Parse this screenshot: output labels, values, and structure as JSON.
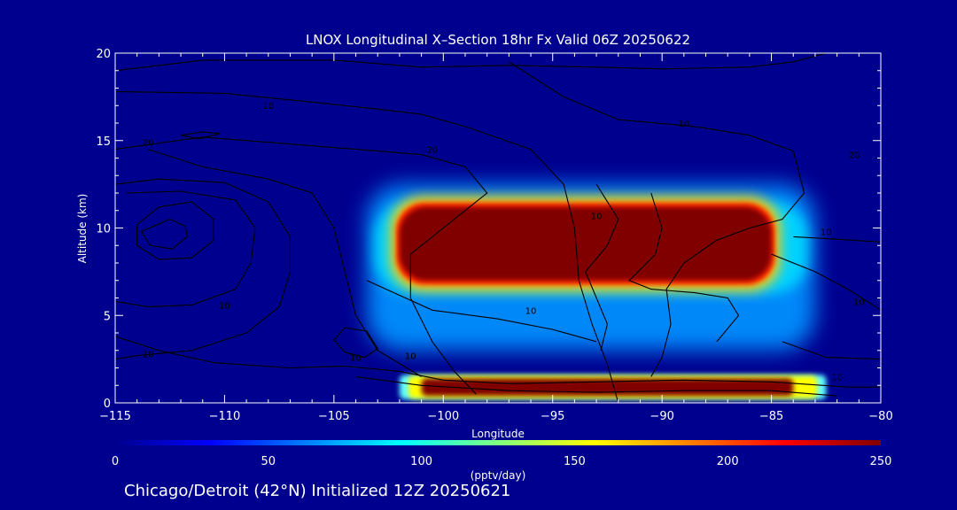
{
  "chart_data": {
    "type": "heatmap",
    "title": "LNOX Longitudinal X–Section 18hr  Fx Valid 06Z 20250622",
    "xlabel": "Longitude",
    "ylabel": "Altitude (km)",
    "xlim": [
      -115,
      -80
    ],
    "ylim": [
      0,
      20
    ],
    "x_ticks": [
      -115,
      -110,
      -105,
      -100,
      -95,
      -90,
      -85,
      -80
    ],
    "x_tick_labels": [
      "−115",
      "−110",
      "−105",
      "−100",
      "−95",
      "−90",
      "−85",
      "−80"
    ],
    "y_ticks": [
      0,
      5,
      10,
      15,
      20
    ],
    "y_tick_labels": [
      "0",
      "5",
      "10",
      "15",
      "20"
    ],
    "colorbar": {
      "label": "(pptv/day)",
      "min": 0,
      "max": 250,
      "ticks": [
        0,
        50,
        100,
        150,
        200,
        250
      ],
      "tick_labels": [
        "0",
        "50",
        "100",
        "150",
        "200",
        "250"
      ],
      "colors": [
        "#00008f",
        "#0000ff",
        "#0080ff",
        "#00ffff",
        "#80ff80",
        "#ffff00",
        "#ff8000",
        "#ff0000",
        "#800000"
      ]
    },
    "regions": [
      {
        "name": "upper-anvil",
        "value": 250,
        "lon": [
          -102,
          -85
        ],
        "alt": [
          7,
          11.2
        ],
        "halo_lon": [
          -103.5,
          -83
        ],
        "halo_alt": [
          3,
          12.5
        ]
      },
      {
        "name": "low-level-band",
        "value": 250,
        "lon": [
          -101,
          -84
        ],
        "alt": [
          0.4,
          1.4
        ],
        "halo_lon": [
          -102,
          -82.5
        ],
        "halo_alt": [
          0.2,
          1.6
        ]
      }
    ],
    "contour_labels": [
      {
        "text": "10",
        "lon": -108,
        "alt": 16.8
      },
      {
        "text": "20",
        "lon": -113.5,
        "alt": 14.7
      },
      {
        "text": "20",
        "lon": -100.5,
        "alt": 14.3
      },
      {
        "text": "10",
        "lon": -89,
        "alt": 15.8
      },
      {
        "text": "10",
        "lon": -101.5,
        "alt": 2.5
      },
      {
        "text": "10",
        "lon": -96,
        "alt": 5.1
      },
      {
        "text": "10",
        "lon": -104,
        "alt": 2.4
      },
      {
        "text": "10",
        "lon": -82.5,
        "alt": 9.6
      },
      {
        "text": "10",
        "lon": -81,
        "alt": 5.6
      },
      {
        "text": "10",
        "lon": -82,
        "alt": 1.3
      },
      {
        "text": "10",
        "lon": -110,
        "alt": 5.4
      },
      {
        "text": "10",
        "lon": -113.5,
        "alt": 2.6
      },
      {
        "text": "20",
        "lon": -81.2,
        "alt": 14.0
      },
      {
        "text": "10",
        "lon": -93,
        "alt": 10.5
      }
    ],
    "contour_lines": [
      [
        [
          -115,
          19
        ],
        [
          -111,
          19.6
        ],
        [
          -105,
          19.6
        ],
        [
          -101,
          19.2
        ],
        [
          -97,
          19.3
        ],
        [
          -93,
          19.2
        ],
        [
          -90,
          19.1
        ],
        [
          -86,
          19.2
        ],
        [
          -84,
          19.5
        ],
        [
          -82.5,
          20
        ]
      ],
      [
        [
          -115,
          17.8
        ],
        [
          -110,
          17.7
        ],
        [
          -106,
          17.2
        ],
        [
          -103,
          16.8
        ],
        [
          -101,
          16.5
        ],
        [
          -99,
          15.8
        ],
        [
          -96,
          14.5
        ],
        [
          -94.5,
          12.5
        ],
        [
          -94,
          10
        ],
        [
          -93.8,
          7
        ],
        [
          -93.2,
          4.5
        ],
        [
          -92.5,
          2.2
        ],
        [
          -92,
          0
        ]
      ],
      [
        [
          -115,
          14.5
        ],
        [
          -111,
          15.2
        ],
        [
          -107,
          14.8
        ],
        [
          -104,
          14.5
        ],
        [
          -101,
          14.2
        ],
        [
          -99,
          13.5
        ],
        [
          -98,
          12
        ],
        [
          -99.5,
          10.5
        ],
        [
          -101.5,
          8.5
        ],
        [
          -101.5,
          6
        ],
        [
          -100.5,
          3.5
        ],
        [
          -99.5,
          1.8
        ],
        [
          -98.5,
          0.5
        ]
      ],
      [
        [
          -113.5,
          14.5
        ],
        [
          -111,
          13.5
        ],
        [
          -108,
          12.8
        ],
        [
          -106,
          12
        ],
        [
          -105,
          10
        ],
        [
          -104.5,
          7.5
        ],
        [
          -104,
          5
        ],
        [
          -103,
          3
        ],
        [
          -101,
          1.5
        ]
      ],
      [
        [
          -115,
          12.5
        ],
        [
          -113,
          12.8
        ],
        [
          -110,
          12.6
        ],
        [
          -108,
          11.5
        ],
        [
          -107,
          9.5
        ],
        [
          -107,
          7.5
        ],
        [
          -107.5,
          5.5
        ],
        [
          -109,
          4
        ],
        [
          -111.5,
          3
        ],
        [
          -114,
          2.7
        ],
        [
          -115,
          2.5
        ]
      ],
      [
        [
          -113,
          11.2
        ],
        [
          -111.5,
          11.5
        ],
        [
          -110.5,
          10.5
        ],
        [
          -110.5,
          9.3
        ],
        [
          -111.5,
          8.3
        ],
        [
          -113,
          8.2
        ],
        [
          -114,
          9
        ],
        [
          -114,
          10.2
        ],
        [
          -113,
          11.2
        ]
      ],
      [
        [
          -112.5,
          10.5
        ],
        [
          -111.8,
          10.1
        ],
        [
          -111.7,
          9.5
        ],
        [
          -112.4,
          8.8
        ],
        [
          -113.4,
          9
        ],
        [
          -113.8,
          9.8
        ],
        [
          -112.5,
          10.5
        ]
      ],
      [
        [
          -114.5,
          12
        ],
        [
          -112,
          12.1
        ],
        [
          -109.5,
          11.6
        ],
        [
          -108.6,
          10
        ],
        [
          -108.8,
          8
        ],
        [
          -109.5,
          6.5
        ],
        [
          -111.5,
          5.6
        ],
        [
          -113.5,
          5.5
        ],
        [
          -115,
          5.8
        ]
      ],
      [
        [
          -104.5,
          4.3
        ],
        [
          -103.5,
          4.1
        ],
        [
          -103,
          3.1
        ],
        [
          -103.6,
          2.6
        ],
        [
          -104.5,
          2.9
        ],
        [
          -105,
          3.6
        ],
        [
          -104.5,
          4.3
        ]
      ],
      [
        [
          -112,
          15.3
        ],
        [
          -111,
          15.5
        ],
        [
          -110.2,
          15.4
        ],
        [
          -111.2,
          15.1
        ],
        [
          -112,
          15.3
        ]
      ],
      [
        [
          -97,
          19.5
        ],
        [
          -94.5,
          17.5
        ],
        [
          -92,
          16.2
        ],
        [
          -88.5,
          15.8
        ],
        [
          -86,
          15.3
        ],
        [
          -84,
          14.4
        ],
        [
          -83.5,
          12
        ],
        [
          -84.5,
          10.5
        ],
        [
          -86,
          10
        ],
        [
          -87.5,
          9.3
        ],
        [
          -89,
          8
        ],
        [
          -89.8,
          6.5
        ],
        [
          -89.6,
          4.5
        ],
        [
          -90,
          2.6
        ],
        [
          -90.5,
          1.5
        ]
      ],
      [
        [
          -93,
          12.5
        ],
        [
          -92,
          10.5
        ],
        [
          -92.5,
          9
        ],
        [
          -93.5,
          7.5
        ],
        [
          -93,
          6
        ],
        [
          -92.5,
          4.5
        ],
        [
          -92.8,
          3
        ]
      ],
      [
        [
          -90.5,
          12
        ],
        [
          -90,
          10
        ],
        [
          -90.3,
          8.5
        ],
        [
          -91.5,
          7
        ],
        [
          -90.5,
          6.5
        ],
        [
          -88.5,
          6.3
        ],
        [
          -87,
          6
        ],
        [
          -86.5,
          5
        ],
        [
          -87.5,
          3.5
        ]
      ],
      [
        [
          -103.5,
          7
        ],
        [
          -100.5,
          5.3
        ],
        [
          -97.5,
          4.8
        ],
        [
          -95,
          4.2
        ],
        [
          -93,
          3.5
        ]
      ],
      [
        [
          -115,
          3.8
        ],
        [
          -113,
          3
        ],
        [
          -110.5,
          2.3
        ],
        [
          -107,
          2
        ],
        [
          -104.5,
          2.1
        ],
        [
          -102,
          1.8
        ],
        [
          -100,
          1.3
        ],
        [
          -97,
          1.1
        ],
        [
          -93,
          1.2
        ],
        [
          -89,
          1.3
        ],
        [
          -85,
          1.2
        ],
        [
          -81.5,
          0.9
        ],
        [
          -80,
          0.9
        ]
      ],
      [
        [
          -104,
          1.5
        ],
        [
          -101,
          1
        ],
        [
          -97,
          0.7
        ],
        [
          -93,
          0.6
        ],
        [
          -89,
          0.7
        ],
        [
          -85,
          0.7
        ],
        [
          -82,
          0.4
        ]
      ],
      [
        [
          -85,
          8.5
        ],
        [
          -83,
          7.5
        ],
        [
          -81.5,
          6.5
        ],
        [
          -80,
          5.3
        ]
      ],
      [
        [
          -84,
          9.5
        ],
        [
          -82.5,
          9.4
        ],
        [
          -80,
          9.2
        ]
      ],
      [
        [
          -84.5,
          3.5
        ],
        [
          -82.5,
          2.6
        ],
        [
          -80,
          2.5
        ]
      ]
    ]
  },
  "footer": {
    "location": "Chicago/Detroit (42°N) Initialized 12Z 20250621"
  }
}
